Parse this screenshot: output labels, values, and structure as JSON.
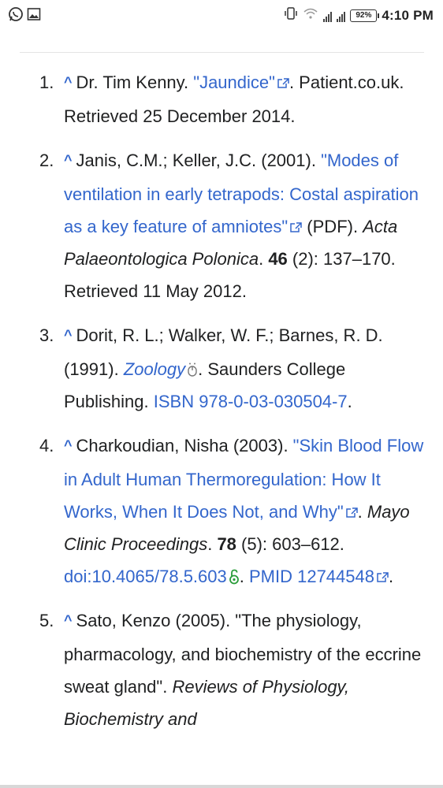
{
  "status_bar": {
    "time": "4:10 PM",
    "battery": "92%",
    "icons": [
      "whatsapp-icon",
      "gallery-icon",
      "vibrate-icon",
      "wifi-icon",
      "signal-icon",
      "signal-icon-2",
      "battery-icon"
    ]
  },
  "accent_color": "#3366cc",
  "references": [
    {
      "num": "1.",
      "caret": "^",
      "author": "Dr. Tim Kenny. ",
      "title": "\"Jaundice\"",
      "after": ". Patient.co.uk. Retrieved 25 December 2014."
    },
    {
      "num": "2.",
      "caret": "^",
      "author": "Janis, C.M.; Keller, J.C. (2001). ",
      "title": "\"Modes of ventilation in early tetrapods: Costal aspiration as a key feature of amniotes\"",
      "after_format": " (PDF). ",
      "journal": "Acta Palaeontologica Polonica",
      "dot": ". ",
      "volume": "46",
      "tail": " (2): 137–170. Retrieved 11 May 2012."
    },
    {
      "num": "3.",
      "caret": "^",
      "author": "Dorit, R. L.; Walker, W. F.; Barnes, R. D. (1991). ",
      "book": "Zoology",
      "publisher": ". Saunders College Publishing. ",
      "isbn_label": "ISBN",
      "isbn": "978-0-03-030504-7",
      "end": "."
    },
    {
      "num": "4.",
      "caret": "^",
      "author": "Charkoudian, Nisha (2003). ",
      "title": "\"Skin Blood Flow in Adult Human Thermoregulation: How It Works, When It Does Not, and Why\"",
      "dot": ". ",
      "journal": "Mayo Clinic Proceedings",
      "dot2": ". ",
      "volume": "78",
      "tail": " (5): 603–612. ",
      "doi_label": "doi",
      "doi": ":10.4065/78.5.603",
      "dot3": ". ",
      "pmid_label": "PMID",
      "pmid": " 12744548",
      "end": "."
    },
    {
      "num": "5.",
      "caret": "^",
      "author": "Sato, Kenzo (2005). \"The physiology, pharmacology, and biochemistry of the eccrine sweat gland\". ",
      "journal": "Reviews of Physiology, Biochemistry and"
    }
  ]
}
